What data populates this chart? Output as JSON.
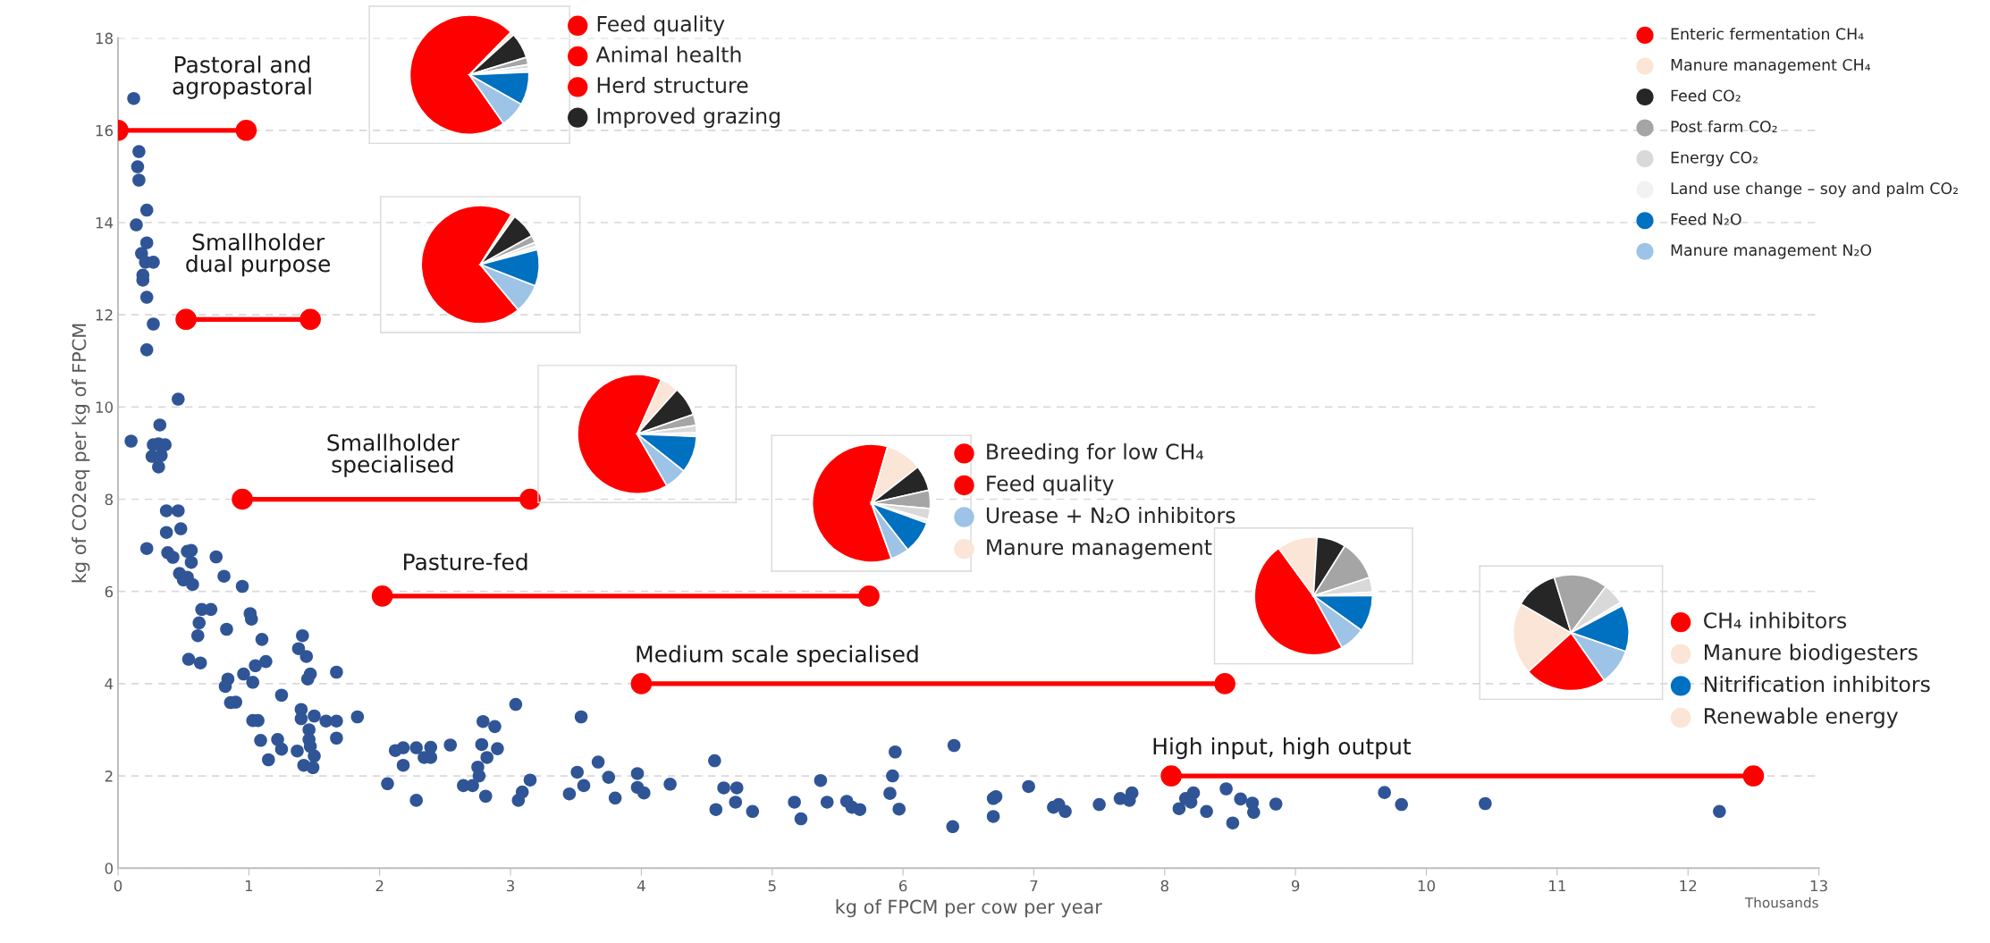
{
  "chart_data": [
    {
      "type": "scatter",
      "xlabel": "kg of FPCM per cow per year",
      "ylabel": "kg of CO2eq per kg of FPCM",
      "annotations": [
        "Thousands"
      ],
      "xlim": [
        0,
        13
      ],
      "xticks": [
        0,
        1,
        2,
        3,
        4,
        5,
        6,
        7,
        8,
        9,
        10,
        11,
        12,
        13
      ],
      "ylim": [
        0,
        18
      ],
      "yticks": [
        0,
        2,
        4,
        6,
        8,
        10,
        12,
        14,
        16,
        18
      ],
      "grid": "y",
      "marker": "circle",
      "line_style": "solid",
      "series": [
        {
          "type": "scatter",
          "color": "#2f5597",
          "x": [
            0.12,
            0.16,
            0.15,
            0.16,
            0.22,
            0.14,
            0.22,
            0.18,
            0.21,
            0.27,
            0.19,
            0.19,
            0.22,
            0.27,
            0.22,
            0.46,
            0.32,
            0.1,
            0.27,
            0.36,
            0.31,
            0.26,
            0.33,
            0.31,
            0.37,
            0.46,
            0.37,
            0.48,
            0.22,
            0.38,
            0.42,
            0.56,
            0.53,
            0.56,
            0.75,
            0.47,
            0.53,
            0.5,
            0.57,
            0.81,
            0.95,
            0.64,
            0.71,
            0.62,
            0.61,
            0.83,
            1.01,
            1.02,
            1.1,
            0.54,
            0.63,
            1.13,
            1.05,
            0.96,
            1.03,
            0.84,
            0.82,
            1.25,
            0.86,
            0.9,
            1.03,
            1.07,
            1.09,
            1.22,
            1.25,
            1.15,
            1.41,
            1.38,
            1.44,
            1.47,
            1.45,
            1.67,
            1.4,
            1.4,
            1.5,
            1.46,
            1.46,
            1.47,
            1.37,
            1.5,
            1.42,
            1.49,
            1.59,
            1.67,
            1.67,
            1.83,
            2.06,
            2.12,
            2.18,
            2.18,
            2.28,
            2.28,
            2.34,
            2.39,
            2.39,
            2.54,
            2.64,
            2.71,
            2.75,
            2.76,
            2.81,
            2.78,
            2.79,
            2.82,
            2.88,
            2.9,
            3.04,
            3.06,
            3.09,
            3.15,
            3.45,
            3.51,
            3.54,
            3.56,
            3.67,
            3.75,
            3.8,
            3.97,
            3.97,
            4.02,
            4.22,
            4.56,
            4.57,
            4.63,
            4.73,
            4.72,
            4.85,
            5.17,
            5.22,
            5.37,
            5.42,
            5.57,
            5.61,
            5.67,
            5.9,
            5.92,
            5.94,
            5.97,
            6.38,
            6.39,
            6.69,
            6.71,
            6.69,
            6.96,
            7.15,
            7.19,
            7.24,
            7.5,
            7.66,
            7.73,
            7.75,
            8.11,
            8.16,
            8.22,
            8.2,
            8.32,
            8.47,
            8.52,
            8.58,
            8.67,
            8.68,
            8.85,
            9.68,
            9.81,
            10.45,
            12.24
          ],
          "values": [
            16.69,
            15.54,
            15.21,
            14.92,
            14.27,
            13.95,
            13.56,
            13.33,
            13.14,
            13.14,
            12.86,
            12.75,
            12.38,
            11.8,
            11.24,
            10.17,
            9.61,
            9.26,
            9.18,
            9.18,
            9.2,
            8.93,
            8.95,
            8.7,
            7.75,
            7.75,
            7.28,
            7.36,
            6.93,
            6.84,
            6.74,
            6.89,
            6.87,
            6.63,
            6.75,
            6.39,
            6.31,
            6.25,
            6.15,
            6.33,
            6.11,
            5.61,
            5.61,
            5.32,
            5.04,
            5.18,
            5.52,
            5.4,
            4.96,
            4.53,
            4.45,
            4.48,
            4.39,
            4.21,
            4.03,
            4.1,
            3.94,
            3.75,
            3.59,
            3.6,
            3.2,
            3.2,
            2.77,
            2.79,
            2.58,
            2.35,
            5.04,
            4.76,
            4.59,
            4.21,
            4.1,
            4.25,
            3.44,
            3.24,
            3.3,
            3.0,
            2.79,
            2.64,
            2.54,
            2.43,
            2.23,
            2.18,
            3.19,
            3.19,
            2.82,
            3.28,
            1.83,
            2.55,
            2.61,
            2.23,
            2.61,
            1.47,
            2.4,
            2.4,
            2.62,
            2.67,
            1.79,
            1.79,
            2.19,
            2.0,
            1.56,
            2.68,
            3.18,
            2.4,
            3.07,
            2.59,
            3.55,
            1.47,
            1.65,
            1.91,
            1.61,
            2.08,
            3.28,
            1.79,
            2.3,
            1.97,
            1.52,
            2.05,
            1.75,
            1.63,
            1.82,
            2.33,
            1.27,
            1.74,
            1.74,
            1.43,
            1.23,
            1.43,
            1.07,
            1.9,
            1.43,
            1.45,
            1.32,
            1.27,
            1.62,
            2.0,
            2.52,
            1.28,
            0.9,
            2.66,
            1.51,
            1.55,
            1.12,
            1.77,
            1.32,
            1.38,
            1.23,
            1.38,
            1.51,
            1.47,
            1.63,
            1.29,
            1.51,
            1.63,
            1.43,
            1.23,
            1.72,
            0.98,
            1.5,
            1.41,
            1.21,
            1.39,
            1.64,
            1.38,
            1.4,
            1.23
          ]
        },
        {
          "type": "line",
          "name": "Pastoral and\nagropastoral",
          "color": "#ff0000",
          "x": [
            0,
            0.98
          ],
          "values": [
            16,
            16
          ]
        },
        {
          "type": "line",
          "name": "Smallholder\ndual purpose",
          "color": "#ff0000",
          "x": [
            0.52,
            1.47
          ],
          "values": [
            11.9,
            11.9
          ]
        },
        {
          "type": "line",
          "name": "Smallholder\nspecialised",
          "color": "#ff0000",
          "x": [
            0.95,
            3.15
          ],
          "values": [
            8,
            8
          ]
        },
        {
          "type": "line",
          "name": "Pasture-fed",
          "color": "#ff0000",
          "x": [
            2.02,
            5.74
          ],
          "values": [
            5.9,
            5.9
          ]
        },
        {
          "type": "line",
          "name": "Medium scale specialised",
          "color": "#ff0000",
          "x": [
            4.0,
            8.46
          ],
          "values": [
            4,
            4
          ]
        },
        {
          "type": "line",
          "name": "High input, high output",
          "color": "#ff0000",
          "x": [
            8.05,
            12.5
          ],
          "values": [
            2,
            2
          ]
        }
      ]
    },
    {
      "type": "other",
      "categories": [
        "Enteric fermentation CH₄",
        "Manure management CH₄",
        "Feed CO₂",
        "Post farm CO₂",
        "Energy CO₂",
        "Land use change – soy and palm CO₂",
        "Feed N₂O",
        "Manure management N₂O"
      ],
      "colors": [
        "#ff0000",
        "#fbe5d6",
        "#262626",
        "#a5a5a5",
        "#d9d9d9",
        "#f2f2f2",
        "#0070c0",
        "#9dc3e6"
      ]
    },
    {
      "type": "pie",
      "categories": [
        null,
        null,
        null,
        null,
        null,
        null,
        null,
        null
      ],
      "values": [
        72,
        1,
        7,
        2,
        1,
        1,
        9,
        7
      ],
      "colors": [
        "#ff0000",
        "#fbe5d6",
        "#262626",
        "#a5a5a5",
        "#d9d9d9",
        "#f2f2f2",
        "#0070c0",
        "#9dc3e6"
      ]
    },
    {
      "type": "other",
      "categories": [
        "Feed quality",
        "Animal health",
        "Herd structure",
        "Improved grazing"
      ],
      "colors": [
        "#ff0000",
        "#ff0000",
        "#ff0000",
        "#262626"
      ]
    },
    {
      "type": "pie",
      "categories": [
        null,
        null,
        null,
        null,
        null,
        null,
        null,
        null
      ],
      "values": [
        70,
        1,
        7,
        2,
        1,
        1,
        10,
        8
      ],
      "colors": [
        "#ff0000",
        "#fbe5d6",
        "#262626",
        "#a5a5a5",
        "#d9d9d9",
        "#f2f2f2",
        "#0070c0",
        "#9dc3e6"
      ]
    },
    {
      "type": "pie",
      "categories": [
        null,
        null,
        null,
        null,
        null,
        null,
        null,
        null
      ],
      "values": [
        65,
        5,
        8,
        3,
        2,
        1,
        10,
        6
      ],
      "colors": [
        "#ff0000",
        "#fbe5d6",
        "#262626",
        "#a5a5a5",
        "#d9d9d9",
        "#f2f2f2",
        "#0070c0",
        "#9dc3e6"
      ]
    },
    {
      "type": "pie",
      "categories": [
        null,
        null,
        null,
        null,
        null,
        null,
        null,
        null
      ],
      "values": [
        60,
        10,
        7,
        5,
        3,
        1,
        9,
        5
      ],
      "colors": [
        "#ff0000",
        "#fbe5d6",
        "#262626",
        "#a5a5a5",
        "#d9d9d9",
        "#f2f2f2",
        "#0070c0",
        "#9dc3e6"
      ]
    },
    {
      "type": "other",
      "categories": [
        "Breeding for low CH₄",
        "Feed quality",
        "Urease + N₂O inhibitors",
        "Manure management"
      ],
      "colors": [
        "#ff0000",
        "#ff0000",
        "#9dc3e6",
        "#fbe5d6"
      ]
    },
    {
      "type": "pie",
      "categories": [
        null,
        null,
        null,
        null,
        null,
        null,
        null,
        null
      ],
      "values": [
        48,
        11,
        8,
        11,
        4,
        1,
        10,
        7
      ],
      "colors": [
        "#ff0000",
        "#fbe5d6",
        "#262626",
        "#a5a5a5",
        "#d9d9d9",
        "#f2f2f2",
        "#0070c0",
        "#9dc3e6"
      ]
    },
    {
      "type": "pie",
      "categories": [
        null,
        null,
        null,
        null,
        null,
        null,
        null,
        null
      ],
      "values": [
        23,
        20,
        12,
        15,
        6,
        1,
        13,
        10
      ],
      "colors": [
        "#ff0000",
        "#fbe5d6",
        "#262626",
        "#a5a5a5",
        "#d9d9d9",
        "#f2f2f2",
        "#0070c0",
        "#9dc3e6"
      ]
    },
    {
      "type": "other",
      "categories": [
        "CH₄ inhibitors",
        "Manure biodigesters",
        "Nitrification inhibitors",
        "Renewable energy"
      ],
      "colors": [
        "#ff0000",
        "#fbe5d6",
        "#0070c0",
        "#fbe5d6"
      ]
    }
  ]
}
